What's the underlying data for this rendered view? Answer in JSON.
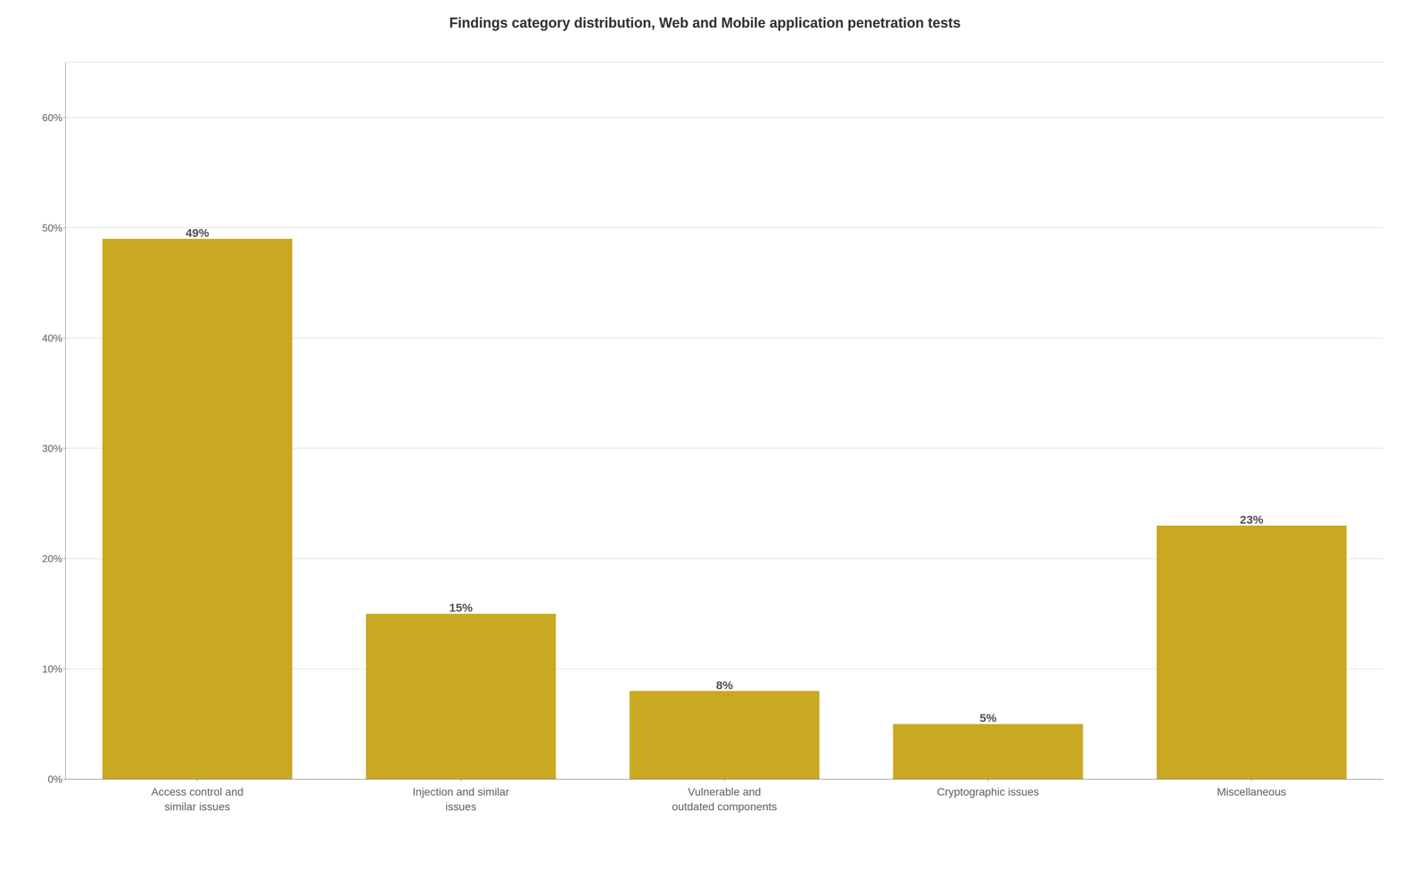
{
  "chart_data": {
    "type": "bar",
    "title": "Findings category distribution, Web and Mobile application penetration tests",
    "categories": [
      "Access control and\nsimilar issues",
      "Injection and similar\nissues",
      "Vulnerable and\noutdated components",
      "Cryptographic issues",
      "Miscellaneous"
    ],
    "values": [
      49,
      15,
      8,
      5,
      23
    ],
    "value_labels": [
      "49%",
      "15%",
      "8%",
      "5%",
      "23%"
    ],
    "color": "#C9A822",
    "ylim": [
      0,
      65
    ],
    "yticks": [
      {
        "value": 0,
        "label": "0%"
      },
      {
        "value": 10,
        "label": "10%"
      },
      {
        "value": 20,
        "label": "20%"
      },
      {
        "value": 30,
        "label": "30%"
      },
      {
        "value": 40,
        "label": "40%"
      },
      {
        "value": 50,
        "label": "50%"
      },
      {
        "value": 60,
        "label": "60%"
      }
    ],
    "grid": true,
    "data_labels": true
  }
}
